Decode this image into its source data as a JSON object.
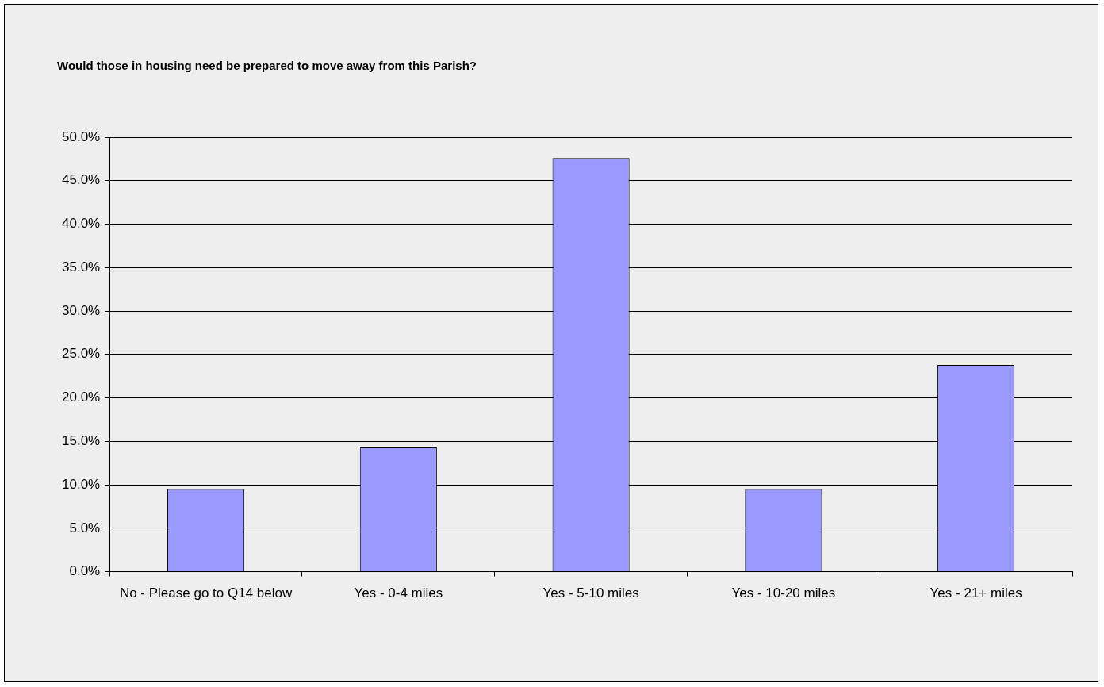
{
  "chart_data": {
    "type": "bar",
    "title": "Would those in housing need be prepared to move away from this Parish?",
    "categories": [
      "No - Please go to Q14 below",
      "Yes - 0-4 miles",
      "Yes - 5-10 miles",
      "Yes - 10-20 miles",
      "Yes - 21+ miles"
    ],
    "values": [
      9.5,
      14.3,
      47.6,
      9.5,
      23.8
    ],
    "color": "#9999ff",
    "ylim": [
      0,
      50
    ],
    "yticks": [
      {
        "value": 0,
        "label": "0.0%"
      },
      {
        "value": 5,
        "label": "5.0%"
      },
      {
        "value": 10,
        "label": "10.0%"
      },
      {
        "value": 15,
        "label": "15.0%"
      },
      {
        "value": 20,
        "label": "20.0%"
      },
      {
        "value": 25,
        "label": "25.0%"
      },
      {
        "value": 30,
        "label": "30.0%"
      },
      {
        "value": 35,
        "label": "35.0%"
      },
      {
        "value": 40,
        "label": "40.0%"
      },
      {
        "value": 45,
        "label": "45.0%"
      },
      {
        "value": 50,
        "label": "50.0%"
      }
    ],
    "grid": "y",
    "legend": false
  }
}
